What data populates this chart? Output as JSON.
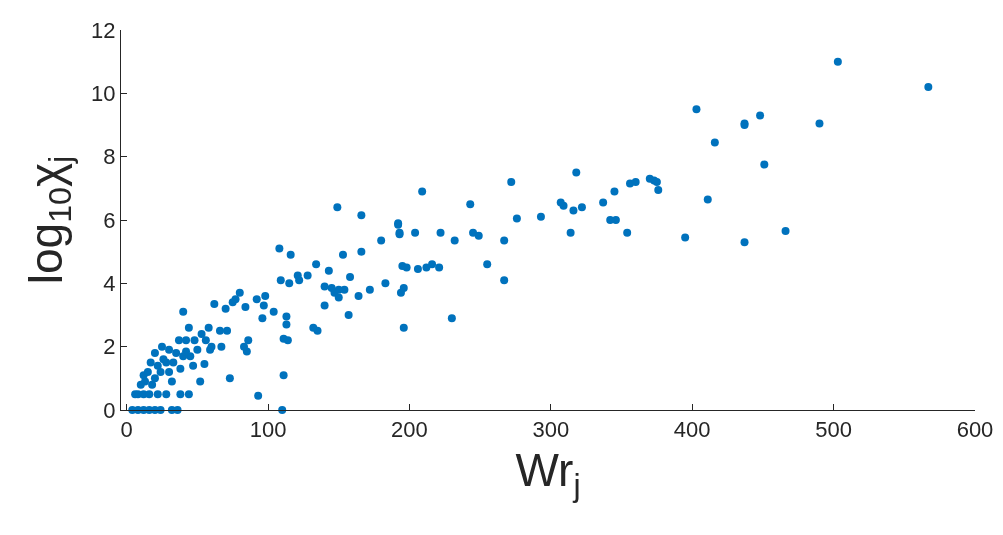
{
  "chart_data": {
    "type": "scatter",
    "xlabel": "Wr$_{j}$",
    "ylabel": "log$_{10}$χ$_{j}$",
    "xlim": [
      -4,
      600
    ],
    "xticks": [
      0,
      100,
      200,
      300,
      400,
      500,
      600
    ],
    "ylim": [
      0,
      12
    ],
    "yticks": [
      0,
      2,
      4,
      6,
      8,
      10,
      12
    ],
    "marker": "circle",
    "series": [
      {
        "color": "#0072bd",
        "x": [
          567,
          503,
          490,
          466,
          451,
          448,
          437,
          437,
          437,
          416,
          411,
          403,
          395,
          376,
          375,
          373,
          370,
          356,
          360,
          354,
          346,
          342,
          345,
          337,
          322,
          318,
          316,
          314,
          309,
          307,
          293,
          276,
          272,
          267,
          267,
          255,
          249,
          245,
          243,
          232,
          230,
          222,
          221,
          216,
          212,
          209,
          206,
          204,
          198,
          195,
          193,
          193,
          192,
          192,
          196,
          196,
          194,
          183,
          180,
          172,
          166,
          164,
          166,
          158,
          157,
          154,
          153,
          150,
          149,
          147,
          150,
          145,
          140,
          143,
          140,
          135,
          132,
          134,
          128,
          122,
          121,
          116,
          113,
          115,
          114,
          113,
          111,
          111,
          109,
          108,
          110,
          104,
          98,
          96,
          97,
          92,
          93,
          84,
          86,
          85,
          83,
          80,
          77,
          75,
          73,
          71,
          70,
          67,
          66,
          62,
          59,
          58,
          56,
          55,
          53,
          52,
          50,
          48,
          45,
          44,
          42,
          40,
          38,
          37,
          35,
          33,
          32,
          30,
          28,
          26,
          25,
          24,
          22,
          20,
          18,
          17,
          15,
          13,
          12,
          10,
          8,
          6,
          4,
          8,
          12,
          16,
          20,
          24,
          32,
          36,
          28,
          44,
          38,
          22,
          16,
          47,
          60,
          20,
          30,
          12,
          40,
          42
        ],
        "values": [
          10.2,
          11.0,
          9.05,
          5.65,
          7.75,
          9.3,
          9.05,
          9.0,
          5.3,
          8.45,
          6.65,
          9.5,
          5.45,
          6.95,
          7.2,
          7.25,
          7.3,
          7.15,
          7.2,
          5.6,
          6.0,
          6.0,
          6.9,
          6.55,
          6.4,
          7.5,
          6.3,
          5.6,
          6.45,
          6.55,
          6.1,
          6.05,
          7.2,
          5.35,
          4.1,
          4.6,
          5.5,
          5.6,
          6.5,
          5.35,
          2.9,
          5.6,
          4.5,
          4.6,
          4.5,
          6.9,
          4.45,
          5.6,
          4.5,
          4.55,
          5.55,
          5.6,
          5.85,
          5.9,
          2.6,
          3.85,
          3.7,
          4.0,
          5.35,
          3.8,
          6.15,
          3.6,
          5.0,
          4.2,
          3.0,
          3.8,
          4.9,
          3.8,
          6.4,
          3.7,
          3.55,
          3.85,
          3.3,
          4.4,
          3.9,
          2.5,
          2.6,
          4.6,
          4.25,
          4.1,
          4.25,
          4.9,
          2.95,
          4.0,
          2.2,
          2.7,
          2.25,
          1.1,
          4.1,
          5.1,
          0.0,
          3.1,
          3.6,
          2.9,
          3.3,
          3.5,
          0.45,
          3.25,
          2.2,
          1.85,
          2.0,
          3.7,
          3.5,
          3.4,
          1.0,
          2.5,
          3.2,
          2.0,
          2.5,
          3.35,
          1.9,
          2.6,
          2.2,
          1.45,
          2.4,
          0.9,
          1.9,
          2.2,
          1.7,
          2.6,
          2.2,
          3.1,
          1.3,
          2.2,
          1.8,
          1.5,
          0.9,
          1.9,
          1.5,
          1.6,
          2.0,
          1.2,
          1.4,
          1.0,
          0.8,
          1.5,
          1.2,
          0.9,
          0.5,
          0.8,
          0.5,
          0.5,
          0.0,
          0.0,
          0.0,
          0.0,
          0.0,
          0.0,
          0.0,
          0.0,
          0.5,
          0.5,
          0.5,
          0.5,
          0.5,
          1.4,
          2.0,
          1.8,
          1.2,
          1.1,
          1.7,
          1.85
        ]
      }
    ]
  }
}
